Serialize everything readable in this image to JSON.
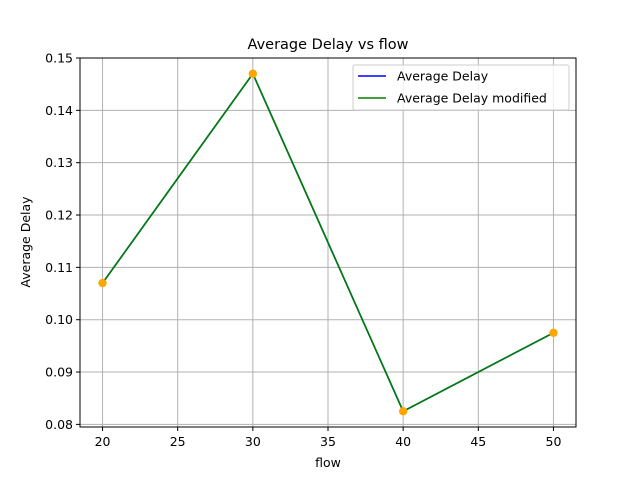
{
  "chart_data": {
    "type": "line",
    "title": "Average Delay vs flow",
    "xlabel": "flow",
    "ylabel": "Average Delay",
    "x": [
      20,
      30,
      40,
      50
    ],
    "xlim": [
      18.5,
      51.5
    ],
    "ylim": [
      0.0795,
      0.15
    ],
    "xticks": [
      20,
      25,
      30,
      35,
      40,
      45,
      50
    ],
    "yticks": [
      0.08,
      0.09,
      0.1,
      0.11,
      0.12,
      0.13,
      0.14,
      0.15
    ],
    "ytick_labels": [
      "0.08",
      "0.09",
      "0.10",
      "0.11",
      "0.12",
      "0.13",
      "0.14",
      "0.15"
    ],
    "grid": true,
    "legend_position": "top-right",
    "series": [
      {
        "name": "Average Delay",
        "values": [
          0.107,
          0.147,
          0.0825,
          0.0975
        ],
        "color": "#0000ff",
        "markers": false
      },
      {
        "name": "Average Delay modified",
        "values": [
          0.107,
          0.147,
          0.0825,
          0.0975
        ],
        "color": "#008000",
        "markers": false
      }
    ],
    "points": {
      "x": [
        20,
        30,
        40,
        50
      ],
      "values": [
        0.107,
        0.147,
        0.0825,
        0.0975
      ],
      "color": "#ffa500"
    }
  }
}
